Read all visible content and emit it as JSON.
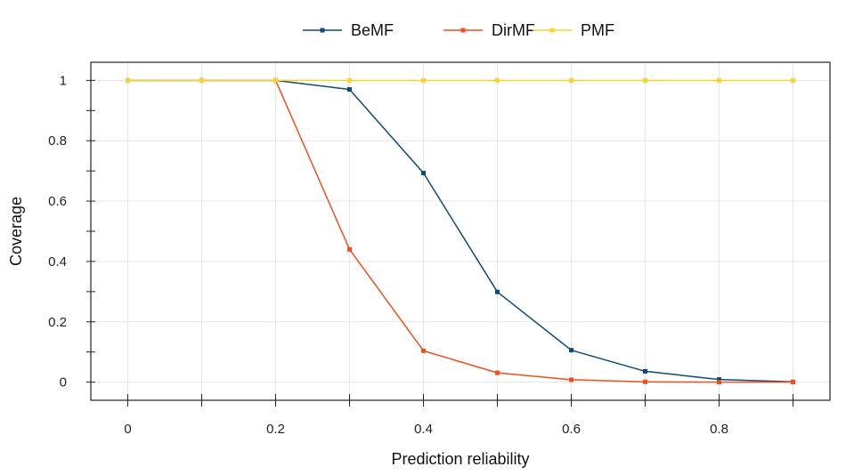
{
  "chart_data": {
    "type": "line",
    "xlabel": "Prediction reliability",
    "ylabel": "Coverage",
    "xlim": [
      -0.05,
      0.95
    ],
    "ylim": [
      -0.06,
      1.06
    ],
    "xticks": [
      0,
      0.2,
      0.4,
      0.6,
      0.8
    ],
    "xtick_labels": [
      "0",
      "0.2",
      "0.4",
      "0.6",
      "0.8"
    ],
    "xtick_marks": [
      0,
      0.1,
      0.2,
      0.3,
      0.4,
      0.5,
      0.6,
      0.7,
      0.8,
      0.9
    ],
    "yticks": [
      0,
      0.2,
      0.4,
      0.6,
      0.8,
      1
    ],
    "ytick_labels": [
      "0",
      "0.2",
      "0.4",
      "0.6",
      "0.8",
      "1"
    ],
    "ytick_marks": [
      0,
      0.1,
      0.2,
      0.3,
      0.4,
      0.5,
      0.6,
      0.7,
      0.8,
      0.9,
      1
    ],
    "grid": true,
    "legend": "top-center",
    "x": [
      0,
      0.1,
      0.2,
      0.3,
      0.4,
      0.5,
      0.6,
      0.7,
      0.8,
      0.9
    ],
    "series": [
      {
        "name": "BeMF",
        "color": "#0b4a7e",
        "values": [
          1,
          1,
          1,
          0.97,
          0.693,
          0.299,
          0.106,
          0.036,
          0.009,
          0.001
        ]
      },
      {
        "name": "DirMF",
        "color": "#f04e1c",
        "values": [
          1,
          1,
          1,
          0.44,
          0.104,
          0.031,
          0.008,
          0.001,
          0.0,
          0.0
        ]
      },
      {
        "name": "PMF",
        "color": "#fcd12a",
        "values": [
          1,
          1,
          1,
          1,
          1,
          1,
          1,
          1,
          1,
          1
        ]
      }
    ]
  }
}
